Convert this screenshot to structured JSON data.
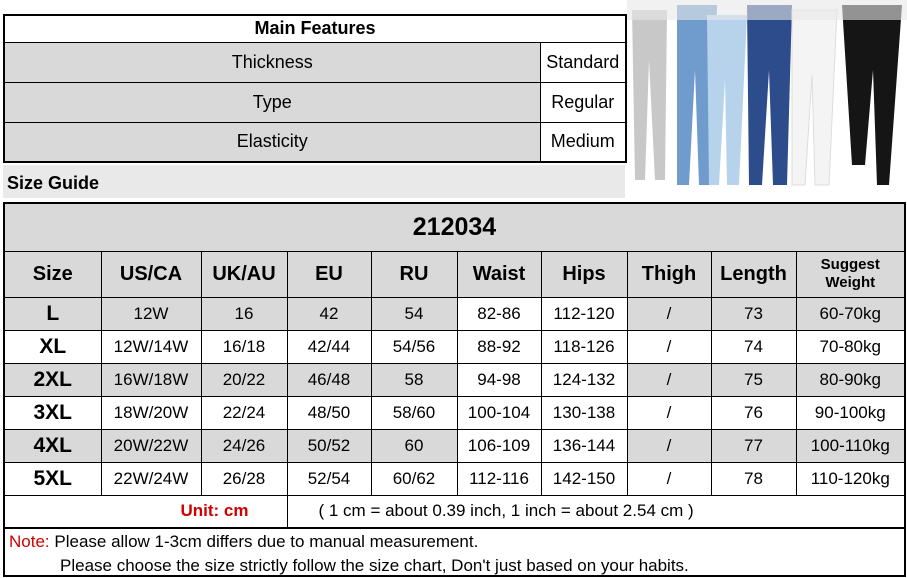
{
  "features": {
    "title": "Main Features",
    "rows": [
      {
        "label": "Thickness",
        "value": "Standard"
      },
      {
        "label": "Type",
        "value": "Regular"
      },
      {
        "label": "Elasticity",
        "value": "Medium"
      }
    ]
  },
  "size_guide_label": "Size Guide",
  "size_table": {
    "model": "212034",
    "headers": [
      "Size",
      "US/CA",
      "UK/AU",
      "EU",
      "RU",
      "Waist",
      "Hips",
      "Thigh",
      "Length",
      "Suggest Weight"
    ],
    "rows": [
      [
        "L",
        "12W",
        "16",
        "42",
        "54",
        "82-86",
        "112-120",
        "/",
        "73",
        "60-70kg"
      ],
      [
        "XL",
        "12W/14W",
        "16/18",
        "42/44",
        "54/56",
        "88-92",
        "118-126",
        "/",
        "74",
        "70-80kg"
      ],
      [
        "2XL",
        "16W/18W",
        "20/22",
        "46/48",
        "58",
        "94-98",
        "124-132",
        "/",
        "75",
        "80-90kg"
      ],
      [
        "3XL",
        "18W/20W",
        "22/24",
        "48/50",
        "58/60",
        "100-104",
        "130-138",
        "/",
        "76",
        "90-100kg"
      ],
      [
        "4XL",
        "20W/22W",
        "24/26",
        "50/52",
        "60",
        "106-109",
        "136-144",
        "/",
        "77",
        "100-110kg"
      ],
      [
        "5XL",
        "22W/24W",
        "26/28",
        "52/54",
        "60/62",
        "112-116",
        "142-150",
        "/",
        "78",
        "110-120kg"
      ]
    ],
    "unit": "Unit: cm",
    "conversion": "( 1 cm = about 0.39 inch,  1 inch = about 2.54 cm )"
  },
  "notes": {
    "label": "Note:",
    "line1": "Please allow 1-3cm differs due to manual measurement.",
    "line2": "Please choose the size strictly follow the size chart, Don't just based on your habits."
  },
  "colors": {
    "accent_red": "#d00000",
    "cell_gray": "#d9d9d9"
  }
}
